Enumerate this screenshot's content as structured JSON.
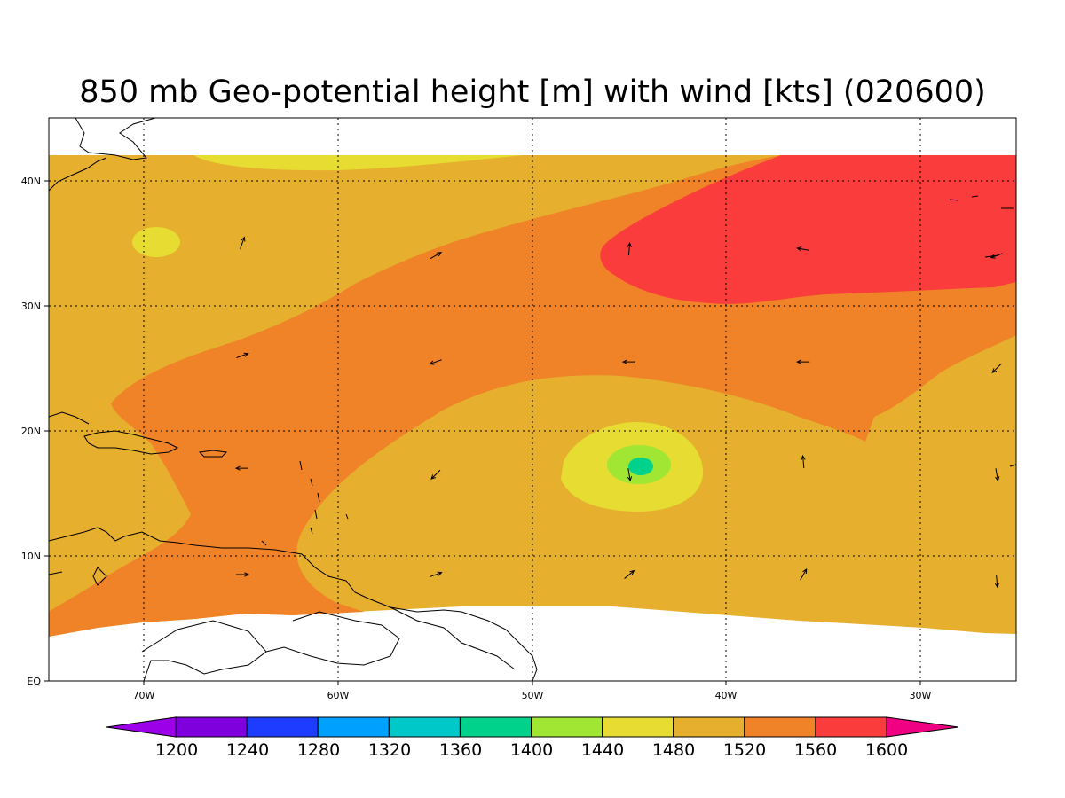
{
  "title": "850 mb Geo-potential height [m] with wind [kts] (020600)",
  "map": {
    "lon_range": [
      -75,
      -25
    ],
    "lat_range": [
      0,
      45
    ],
    "lat_ticks": [
      {
        "label": "EQ"
      },
      {
        "label": "10N"
      },
      {
        "label": "20N"
      },
      {
        "label": "30N"
      },
      {
        "label": "40N"
      }
    ],
    "lon_ticks": [
      {
        "label": "70W"
      },
      {
        "label": "60W"
      },
      {
        "label": "50W"
      },
      {
        "label": "40W"
      },
      {
        "label": "30W"
      }
    ],
    "grid": true,
    "no_data_color": "#ffffff"
  },
  "colorbar": {
    "colors": [
      "#9b00e8",
      "#7f00dc",
      "#1e3cff",
      "#00a0ff",
      "#00c8c8",
      "#00d28c",
      "#a0e632",
      "#e6dc32",
      "#e6af2d",
      "#f08228",
      "#fa3c3c",
      "#f00082"
    ],
    "labels": [
      "1200",
      "1240",
      "1280",
      "1320",
      "1360",
      "1400",
      "1440",
      "1480",
      "1520",
      "1560",
      "1600"
    ]
  },
  "field_colors": {
    "1480_1520": "#e6af2d",
    "1520_1560": "#f08228",
    "1560_1600": "#fa3c3c",
    "1440_1480": "#e6dc32",
    "1400_1440": "#a0e632",
    "1360_1400": "#00d28c"
  },
  "wind_vectors": [
    {
      "lon": -65,
      "lat": 35,
      "dir_deg": 20
    },
    {
      "lon": -55,
      "lat": 34,
      "dir_deg": 60
    },
    {
      "lon": -45,
      "lat": 34.5,
      "dir_deg": 5
    },
    {
      "lon": -36,
      "lat": 34.5,
      "dir_deg": 280
    },
    {
      "lon": -26,
      "lat": 34,
      "dir_deg": 250
    },
    {
      "lon": -65,
      "lat": 26,
      "dir_deg": 70
    },
    {
      "lon": -55,
      "lat": 25.5,
      "dir_deg": 250
    },
    {
      "lon": -45,
      "lat": 25.5,
      "dir_deg": 270
    },
    {
      "lon": -36,
      "lat": 25.5,
      "dir_deg": 270
    },
    {
      "lon": -26,
      "lat": 25,
      "dir_deg": 225
    },
    {
      "lon": -65,
      "lat": 17,
      "dir_deg": 270
    },
    {
      "lon": -55,
      "lat": 16.5,
      "dir_deg": 225
    },
    {
      "lon": -45,
      "lat": 16.5,
      "dir_deg": 170
    },
    {
      "lon": -36,
      "lat": 17.5,
      "dir_deg": 355
    },
    {
      "lon": -26,
      "lat": 16.5,
      "dir_deg": 170
    },
    {
      "lon": -65,
      "lat": 8.5,
      "dir_deg": 90
    },
    {
      "lon": -55,
      "lat": 8.5,
      "dir_deg": 70
    },
    {
      "lon": -45,
      "lat": 8.5,
      "dir_deg": 50
    },
    {
      "lon": -36,
      "lat": 8.5,
      "dir_deg": 30
    },
    {
      "lon": -26,
      "lat": 8,
      "dir_deg": 175
    }
  ]
}
